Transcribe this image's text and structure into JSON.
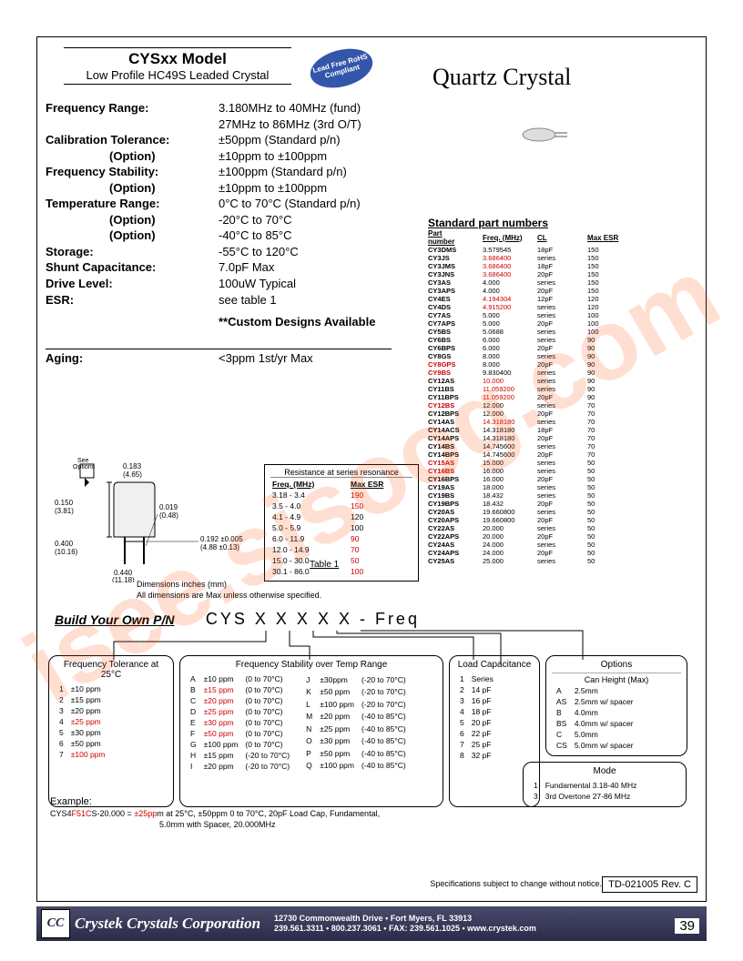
{
  "header": {
    "model": "CYSxx Model",
    "subtitle": "Low Profile HC49S Leaded Crystal",
    "main_title": "Quartz Crystal",
    "badge": "Lead Free RoHS Compliant"
  },
  "specs": {
    "freq_range_label": "Frequency Range:",
    "freq_range_1": "3.180MHz to 40MHz (fund)",
    "freq_range_2": "27MHz to 86MHz (3rd O/T)",
    "cal_tol_label": "Calibration Tolerance:",
    "cal_tol_val": "±50ppm (Standard p/n)",
    "option_label": "(Option)",
    "cal_tol_opt": "±10ppm to ±100ppm",
    "freq_stab_label": "Frequency Stability:",
    "freq_stab_val": "±100ppm (Standard p/n)",
    "freq_stab_opt": "±10ppm to ±100ppm",
    "temp_range_label": "Temperature Range:",
    "temp_range_val": "0°C to 70°C (Standard p/n)",
    "temp_range_opt1": "-20°C to 70°C",
    "temp_range_opt2": "-40°C to 85°C",
    "storage_label": "Storage:",
    "storage_val": "-55°C to 120°C",
    "shunt_label": "Shunt Capacitance:",
    "shunt_val": "7.0pF Max",
    "drive_label": "Drive Level:",
    "drive_val": "100uW Typical",
    "esr_label": "ESR:",
    "esr_val": "see table 1",
    "custom": "**Custom Designs Available",
    "aging_label": "Aging:",
    "aging_val": "<3ppm 1st/yr Max"
  },
  "spn": {
    "title": "Standard part numbers",
    "headers": [
      "Part number",
      "Freq. (MHz)",
      "CL",
      "Max ESR"
    ],
    "rows": [
      {
        "pn": "CY3DMS",
        "f": "3.579545",
        "cl": "18pF",
        "esr": "150"
      },
      {
        "pn": "CY3JS",
        "f": "3.686400",
        "cl": "series",
        "esr": "150",
        "red_f": true
      },
      {
        "pn": "CY3JMS",
        "f": "3.686400",
        "cl": "18pF",
        "esr": "150",
        "red_f": true
      },
      {
        "pn": "CY3JNS",
        "f": "3.686400",
        "cl": "20pF",
        "esr": "150",
        "red_f": true
      },
      {
        "pn": "CY3AS",
        "f": "4.000",
        "cl": "series",
        "esr": "150"
      },
      {
        "pn": "CY3APS",
        "f": "4.000",
        "cl": "20pF",
        "esr": "150"
      },
      {
        "pn": "CY4ES",
        "f": "4.194304",
        "cl": "12pF",
        "esr": "120",
        "red_f": true
      },
      {
        "pn": "CY4DS",
        "f": "4.915200",
        "cl": "series",
        "esr": "120",
        "red_f": true
      },
      {
        "pn": "CY7AS",
        "f": "5.000",
        "cl": "series",
        "esr": "100"
      },
      {
        "pn": "CY7APS",
        "f": "5.000",
        "cl": "20pF",
        "esr": "100"
      },
      {
        "pn": "CY5BS",
        "f": "5.0688",
        "cl": "series",
        "esr": "100"
      },
      {
        "pn": "CY6BS",
        "f": "6.000",
        "cl": "series",
        "esr": "90"
      },
      {
        "pn": "CY6BPS",
        "f": "6.000",
        "cl": "20pF",
        "esr": "90"
      },
      {
        "pn": "CY8GS",
        "f": "8.000",
        "cl": "series",
        "esr": "90"
      },
      {
        "pn": "CY8GPS",
        "f": "8.000",
        "cl": "20pF",
        "esr": "90",
        "red_pn": true
      },
      {
        "pn": "CY9BS",
        "f": "9.830400",
        "cl": "series",
        "esr": "90",
        "red_pn": true
      },
      {
        "pn": "CY12AS",
        "f": "10.000",
        "cl": "series",
        "esr": "90",
        "red_f": true
      },
      {
        "pn": "CY11BS",
        "f": "11.059200",
        "cl": "series",
        "esr": "90",
        "red_f": true
      },
      {
        "pn": "CY11BPS",
        "f": "11.059200",
        "cl": "20pF",
        "esr": "90",
        "red_f": true
      },
      {
        "pn": "CY12BS",
        "f": "12.000",
        "cl": "series",
        "esr": "70",
        "red_pn": true
      },
      {
        "pn": "CY12BPS",
        "f": "12.000",
        "cl": "20pF",
        "esr": "70"
      },
      {
        "pn": "CY14AS",
        "f": "14.318180",
        "cl": "series",
        "esr": "70",
        "red_f": true
      },
      {
        "pn": "CY14ACS",
        "f": "14.318180",
        "cl": "18pF",
        "esr": "70"
      },
      {
        "pn": "CY14APS",
        "f": "14.318180",
        "cl": "20pF",
        "esr": "70"
      },
      {
        "pn": "CY14BS",
        "f": "14.745600",
        "cl": "series",
        "esr": "70"
      },
      {
        "pn": "CY14BPS",
        "f": "14.745600",
        "cl": "20pF",
        "esr": "70"
      },
      {
        "pn": "CY15AS",
        "f": "15.000",
        "cl": "series",
        "esr": "50",
        "red_pn": true
      },
      {
        "pn": "CY16BS",
        "f": "16.000",
        "cl": "series",
        "esr": "50",
        "red_pn": true
      },
      {
        "pn": "CY16BPS",
        "f": "16.000",
        "cl": "20pF",
        "esr": "50"
      },
      {
        "pn": "CY19AS",
        "f": "18.000",
        "cl": "series",
        "esr": "50"
      },
      {
        "pn": "CY19BS",
        "f": "18.432",
        "cl": "series",
        "esr": "50"
      },
      {
        "pn": "CY19BPS",
        "f": "18.432",
        "cl": "20pF",
        "esr": "50"
      },
      {
        "pn": "CY20AS",
        "f": "19.660800",
        "cl": "series",
        "esr": "50"
      },
      {
        "pn": "CY20APS",
        "f": "19.660800",
        "cl": "20pF",
        "esr": "50"
      },
      {
        "pn": "CY22AS",
        "f": "20.000",
        "cl": "series",
        "esr": "50"
      },
      {
        "pn": "CY22APS",
        "f": "20.000",
        "cl": "20pF",
        "esr": "50"
      },
      {
        "pn": "CY24AS",
        "f": "24.000",
        "cl": "series",
        "esr": "50"
      },
      {
        "pn": "CY24APS",
        "f": "24.000",
        "cl": "20pF",
        "esr": "50"
      },
      {
        "pn": "CY25AS",
        "f": "25.000",
        "cl": "series",
        "esr": "50"
      }
    ]
  },
  "mech": {
    "see_options": "See Options",
    "d150": "0.150 (3.81)",
    "d183": "0.183 (4.65)",
    "d019": "0.019 (0.48)",
    "d400": "0.400 (10.16)",
    "d440": "0.440 (11.18)",
    "d192": "0.192 ±0.005 (4.88 ±0.13)",
    "note1": "Dimensions  inches (mm)",
    "note2": "All dimensions are Max unless otherwise specified."
  },
  "res_table": {
    "title": "Resistance at series resonance",
    "h1": "Freq. (MHz)",
    "h2": "Max ESR",
    "caption": "Table 1",
    "rows": [
      {
        "f": "3.18 - 3.4",
        "e": "190",
        "red": true
      },
      {
        "f": "3.5 - 4.0",
        "e": "150",
        "red": true
      },
      {
        "f": "4.1 - 4.9",
        "e": "120"
      },
      {
        "f": "5.0 - 5.9",
        "e": "100"
      },
      {
        "f": "6.0 - 11.9",
        "e": "90",
        "red": true
      },
      {
        "f": "12.0 - 14.9",
        "e": "70",
        "red": true
      },
      {
        "f": "15.0 - 30.0",
        "e": "50",
        "red": true
      },
      {
        "f": "30.1 - 86.0",
        "e": "100",
        "red": true
      }
    ]
  },
  "builder": {
    "title": "Build Your Own P/N",
    "code": "CYS X X X X X - Freq"
  },
  "box_tol": {
    "title": "Frequency Tolerance at 25°C",
    "rows": [
      [
        "1",
        "±10 ppm"
      ],
      [
        "2",
        "±15 ppm"
      ],
      [
        "3",
        "±20 ppm"
      ],
      [
        "4",
        "±25 ppm"
      ],
      [
        "5",
        "±30 ppm"
      ],
      [
        "6",
        "±50 ppm"
      ],
      [
        "7",
        "±100 ppm"
      ]
    ]
  },
  "box_stab": {
    "title": "Frequency Stability over Temp Range",
    "left": [
      [
        "A",
        "±10 ppm",
        "(0 to 70°C)"
      ],
      [
        "B",
        "±15 ppm",
        "(0 to 70°C)"
      ],
      [
        "C",
        "±20 ppm",
        "(0 to 70°C)"
      ],
      [
        "D",
        "±25 ppm",
        "(0 to 70°C)"
      ],
      [
        "E",
        "±30 ppm",
        "(0 to 70°C)"
      ],
      [
        "F",
        "±50 ppm",
        "(0 to 70°C)"
      ],
      [
        "G",
        "±100 ppm",
        "(0 to 70°C)"
      ],
      [
        "H",
        "±15 ppm",
        "(-20 to 70°C)"
      ],
      [
        "I",
        "±20 ppm",
        "(-20 to 70°C)"
      ]
    ],
    "right": [
      [
        "J",
        "±30ppm",
        "(-20 to 70°C)"
      ],
      [
        "K",
        "±50 ppm",
        "(-20 to 70°C)"
      ],
      [
        "L",
        "±100 ppm",
        "(-20 to 70°C)"
      ],
      [
        "M",
        "±20 ppm",
        "(-40 to 85°C)"
      ],
      [
        "N",
        "±25 ppm",
        "(-40 to 85°C)"
      ],
      [
        "O",
        "±30 ppm",
        "(-40 to 85°C)"
      ],
      [
        "P",
        "±50 ppm",
        "(-40 to 85°C)"
      ],
      [
        "Q",
        "±100 ppm",
        "(-40 to 85°C)"
      ]
    ]
  },
  "box_load": {
    "title": "Load Capacitance",
    "rows": [
      [
        "1",
        "Series"
      ],
      [
        "2",
        "14 pF"
      ],
      [
        "3",
        "16 pF"
      ],
      [
        "4",
        "18 pF"
      ],
      [
        "5",
        "20 pF"
      ],
      [
        "6",
        "22 pF"
      ],
      [
        "7",
        "25 pF"
      ],
      [
        "8",
        "32 pF"
      ]
    ]
  },
  "box_opts": {
    "title": "Options",
    "subtitle": "Can Height (Max)",
    "rows": [
      [
        "A",
        "2.5mm"
      ],
      [
        "AS",
        "2.5mm w/ spacer"
      ],
      [
        "B",
        "4.0mm"
      ],
      [
        "BS",
        "4.0mm w/ spacer"
      ],
      [
        "C",
        "5.0mm"
      ],
      [
        "CS",
        "5.0mm w/ spacer"
      ]
    ]
  },
  "box_mode": {
    "title": "Mode",
    "rows": [
      [
        "1",
        "Fundamental 3.18-40 MHz"
      ],
      [
        "3",
        "3rd Overtone 27-86 MHz"
      ]
    ]
  },
  "example": {
    "label": "Example:",
    "line1_a": "CYS4",
    "line1_b": "F51C",
    "line1_c": "S-20.000 = ",
    "line1_d": "±25pp",
    "line1_e": "m at 25°C, ±50ppm 0 to 70°C, 20pF Load Cap, Fundamental,",
    "line2": "5.0mm with Spacer, 20.000MHz"
  },
  "footer": {
    "spec_note": "Specifications subject to change without notice.",
    "rev": "TD-021005 Rev. C",
    "company": "Crystek Crystals Corporation",
    "addr1": "12730 Commonwealth Drive • Fort Myers, FL  33913",
    "addr2": "239.561.3311 • 800.237.3061 • FAX: 239.561.1025 • www.crystek.com",
    "page": "39",
    "logo": "CC"
  },
  "watermark": "isee.sisoog.com"
}
